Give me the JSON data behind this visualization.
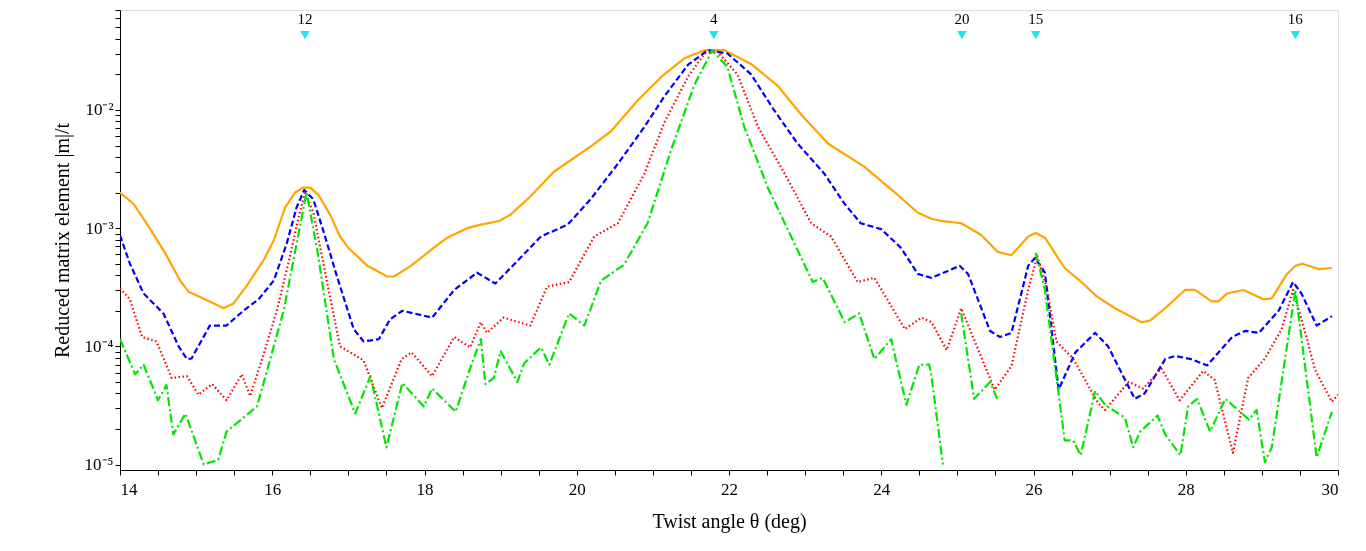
{
  "chart_data": {
    "type": "line",
    "xlabel": "Twist angle θ (deg)",
    "ylabel": "Reduced matrix element  |m|/t",
    "log": "y",
    "grid": false,
    "xlim": [
      14,
      30
    ],
    "ylim": [
      9e-06,
      0.07
    ],
    "xticks": [
      14,
      {
        "value": 14.5,
        "label": null
      },
      {
        "value": 15,
        "label": null
      },
      {
        "value": 15.5,
        "label": null
      },
      16,
      {
        "value": 16.5,
        "label": null
      },
      {
        "value": 17,
        "label": null
      },
      {
        "value": 17.5,
        "label": null
      },
      18,
      {
        "value": 18.5,
        "label": null
      },
      {
        "value": 19,
        "label": null
      },
      {
        "value": 19.5,
        "label": null
      },
      20,
      {
        "value": 20.5,
        "label": null
      },
      {
        "value": 21,
        "label": null
      },
      {
        "value": 21.5,
        "label": null
      },
      22,
      {
        "value": 22.5,
        "label": null
      },
      {
        "value": 23,
        "label": null
      },
      {
        "value": 23.5,
        "label": null
      },
      24,
      {
        "value": 24.5,
        "label": null
      },
      {
        "value": 25,
        "label": null
      },
      {
        "value": 25.5,
        "label": null
      },
      26,
      {
        "value": 26.5,
        "label": null
      },
      {
        "value": 27,
        "label": null
      },
      {
        "value": 27.5,
        "label": null
      },
      28,
      {
        "value": 28.5,
        "label": null
      },
      {
        "value": 29,
        "label": null
      },
      {
        "value": 29.5,
        "label": null
      },
      30
    ],
    "yticks": [
      {
        "value": 1e-05,
        "label": "10⁻⁵"
      },
      {
        "value": 2e-05,
        "label": null
      },
      {
        "value": 3e-05,
        "label": null
      },
      {
        "value": 4e-05,
        "label": null
      },
      {
        "value": 5e-05,
        "label": null
      },
      {
        "value": 6e-05,
        "label": null
      },
      {
        "value": 7e-05,
        "label": null
      },
      {
        "value": 8e-05,
        "label": null
      },
      {
        "value": 9e-05,
        "label": null
      },
      {
        "value": 0.0001,
        "label": "10⁻⁴"
      },
      {
        "value": 0.0002,
        "label": null
      },
      {
        "value": 0.0003,
        "label": null
      },
      {
        "value": 0.0004,
        "label": null
      },
      {
        "value": 0.0005,
        "label": null
      },
      {
        "value": 0.0006,
        "label": null
      },
      {
        "value": 0.0007,
        "label": null
      },
      {
        "value": 0.0008,
        "label": null
      },
      {
        "value": 0.0009,
        "label": null
      },
      {
        "value": 0.001,
        "label": "10⁻³"
      },
      {
        "value": 0.002,
        "label": null
      },
      {
        "value": 0.003,
        "label": null
      },
      {
        "value": 0.004,
        "label": null
      },
      {
        "value": 0.005,
        "label": null
      },
      {
        "value": 0.006,
        "label": null
      },
      {
        "value": 0.007,
        "label": null
      },
      {
        "value": 0.008,
        "label": null
      },
      {
        "value": 0.009,
        "label": null
      },
      {
        "value": 0.01,
        "label": "10⁻²"
      },
      {
        "value": 0.02,
        "label": null
      },
      {
        "value": 0.03,
        "label": null
      },
      {
        "value": 0.04,
        "label": null
      },
      {
        "value": 0.05,
        "label": null
      },
      {
        "value": 0.06,
        "label": null
      },
      {
        "value": 0.07,
        "label": null
      }
    ],
    "series": [
      {
        "color": "#ffa500",
        "line_style": "solid",
        "x": [
          14.0,
          14.18,
          14.39,
          14.59,
          14.79,
          14.9,
          15.18,
          15.36,
          15.49,
          15.67,
          15.89,
          16.02,
          16.17,
          16.3,
          16.4,
          16.5,
          16.61,
          16.76,
          16.89,
          17.0,
          17.25,
          17.51,
          17.6,
          17.82,
          18.12,
          18.3,
          18.56,
          18.74,
          18.98,
          19.13,
          19.39,
          19.7,
          20.18,
          20.45,
          20.8,
          21.11,
          21.42,
          21.68,
          21.94,
          22.29,
          22.64,
          22.95,
          23.3,
          23.78,
          24.18,
          24.48,
          24.66,
          24.79,
          25.05,
          25.31,
          25.53,
          25.71,
          25.93,
          26.03,
          26.15,
          26.41,
          26.63,
          26.83,
          27.07,
          27.42,
          27.53,
          27.73,
          27.99,
          28.12,
          28.34,
          28.43,
          28.54,
          28.76,
          29.02,
          29.13,
          29.33,
          29.44,
          29.53,
          29.75,
          29.92
        ],
        "values": [
          0.002,
          0.0016,
          0.001,
          0.00062,
          0.00036,
          0.00029,
          0.00024,
          0.00021,
          0.00023,
          0.00033,
          0.00054,
          0.00079,
          0.0015,
          0.002,
          0.0022,
          0.0022,
          0.0019,
          0.0013,
          0.00085,
          0.00068,
          0.00048,
          0.00039,
          0.00039,
          0.00048,
          0.00068,
          0.00083,
          0.001,
          0.00107,
          0.00115,
          0.0013,
          0.00185,
          0.003,
          0.0049,
          0.0066,
          0.012,
          0.019,
          0.0275,
          0.032,
          0.032,
          0.0245,
          0.016,
          0.0091,
          0.0052,
          0.0033,
          0.002,
          0.00135,
          0.0012,
          0.00115,
          0.0011,
          0.00088,
          0.00063,
          0.00059,
          0.00085,
          0.00091,
          0.00083,
          0.00046,
          0.00035,
          0.000265,
          0.00021,
          0.00016,
          0.000165,
          0.00021,
          0.0003,
          0.0003,
          0.00024,
          0.00024,
          0.00028,
          0.0003,
          0.00025,
          0.000255,
          0.00041,
          0.00048,
          0.0005,
          0.00045,
          0.00046
        ]
      },
      {
        "color": "#0000ff",
        "line_style": "dashed",
        "x": [
          14.0,
          14.13,
          14.31,
          14.57,
          14.77,
          14.88,
          14.94,
          15.18,
          15.4,
          15.62,
          15.82,
          16.02,
          16.19,
          16.32,
          16.42,
          16.54,
          16.68,
          16.85,
          17.07,
          17.2,
          17.4,
          17.55,
          17.71,
          18.1,
          18.39,
          18.69,
          18.93,
          19.13,
          19.53,
          19.88,
          20.18,
          20.54,
          20.89,
          21.15,
          21.46,
          21.72,
          21.98,
          22.29,
          22.59,
          22.9,
          23.25,
          23.52,
          23.73,
          24.0,
          24.26,
          24.48,
          24.66,
          25.03,
          25.14,
          25.43,
          25.56,
          25.71,
          25.93,
          26.02,
          26.15,
          26.33,
          26.55,
          26.81,
          26.98,
          27.33,
          27.46,
          27.73,
          27.86,
          28.07,
          28.28,
          28.61,
          28.78,
          28.96,
          29.22,
          29.41,
          29.52,
          29.72,
          29.92
        ],
        "values": [
          0.00087,
          0.0005,
          0.00028,
          0.00019,
          0.0001,
          7.8e-05,
          7.9e-05,
          0.00015,
          0.00015,
          0.0002,
          0.00025,
          0.00036,
          0.00074,
          0.0015,
          0.0021,
          0.00175,
          0.00091,
          0.00039,
          0.00014,
          0.00011,
          0.000115,
          0.00017,
          0.0002,
          0.000175,
          0.0003,
          0.00042,
          0.00034,
          0.00046,
          0.00085,
          0.00107,
          0.00175,
          0.0035,
          0.0072,
          0.013,
          0.024,
          0.032,
          0.03,
          0.02,
          0.01,
          0.0052,
          0.0029,
          0.0016,
          0.0011,
          0.00098,
          0.00068,
          0.00041,
          0.00038,
          0.00048,
          0.00041,
          0.000135,
          0.00012,
          0.00013,
          0.00048,
          0.00056,
          0.00042,
          4.3e-05,
          8.9e-05,
          0.00013,
          0.0001,
          3.6e-05,
          4e-05,
          7.8e-05,
          8.3e-05,
          7.8e-05,
          6.9e-05,
          0.00012,
          0.000135,
          0.00013,
          0.0002,
          0.00035,
          0.00028,
          0.00015,
          0.00018
        ]
      },
      {
        "color": "#ff0000",
        "line_style": "dotted",
        "x": [
          14.0,
          14.13,
          14.29,
          14.48,
          14.68,
          14.88,
          15.03,
          15.21,
          15.4,
          15.6,
          15.71,
          15.89,
          16.06,
          16.21,
          16.35,
          16.43,
          16.54,
          16.72,
          16.89,
          17.2,
          17.44,
          17.7,
          17.83,
          18.1,
          18.39,
          18.6,
          18.74,
          18.82,
          19.04,
          19.24,
          19.39,
          19.61,
          19.9,
          20.23,
          20.54,
          20.89,
          21.15,
          21.46,
          21.68,
          21.85,
          22.11,
          22.38,
          22.73,
          23.08,
          23.34,
          23.69,
          23.91,
          24.31,
          24.53,
          24.66,
          24.86,
          25.05,
          25.49,
          25.71,
          25.93,
          26.05,
          26.17,
          26.3,
          26.52,
          26.85,
          26.94,
          27.25,
          27.44,
          27.68,
          27.92,
          28.23,
          28.38,
          28.62,
          28.82,
          29.04,
          29.26,
          29.41,
          29.57,
          29.7,
          29.92,
          30.0
        ],
        "values": [
          0.00031,
          0.00025,
          0.00012,
          0.00011,
          5.4e-05,
          5.6e-05,
          3.9e-05,
          4.8e-05,
          3.5e-05,
          5.8e-05,
          3.8e-05,
          8.7e-05,
          0.0002,
          0.0005,
          0.00126,
          0.002,
          0.00135,
          0.00035,
          0.0001,
          7.6e-05,
          3e-05,
          7.8e-05,
          8.9e-05,
          5.6e-05,
          0.00012,
          9.8e-05,
          0.00016,
          0.00013,
          0.000175,
          0.00016,
          0.00015,
          0.00032,
          0.00035,
          0.00085,
          0.0011,
          0.0029,
          0.0078,
          0.019,
          0.03,
          0.031,
          0.02,
          0.0072,
          0.0029,
          0.0011,
          0.00085,
          0.00035,
          0.00038,
          0.00014,
          0.000175,
          0.00016,
          9.3e-05,
          0.00021,
          4.3e-05,
          6.8e-05,
          0.0003,
          0.00058,
          0.00032,
          0.00011,
          7.9e-05,
          3.3e-05,
          2.9e-05,
          5e-05,
          4.4e-05,
          6.5e-05,
          3.5e-05,
          6.2e-05,
          5.2e-05,
          1.26e-05,
          5.4e-05,
          7.9e-05,
          0.00014,
          0.0003,
          0.00013,
          6.3e-05,
          3.4e-05,
          3.9e-05
        ]
      },
      {
        "color": "#00e600",
        "line_style": "dashdot",
        "x": [
          14.0,
          14.2,
          14.31,
          14.5,
          14.61,
          14.7,
          14.86,
          15.1,
          15.29,
          15.4,
          15.8,
          16.15,
          16.45,
          16.59,
          16.81,
          17.09,
          17.29,
          17.5,
          17.71,
          17.99,
          18.1,
          18.41,
          18.61,
          18.74,
          18.8,
          18.91,
          19.0,
          19.22,
          19.31,
          19.53,
          19.64,
          19.9,
          20.1,
          20.32,
          20.62,
          20.93,
          21.24,
          21.54,
          21.78,
          21.98,
          22.2,
          22.51,
          22.77,
          23.1,
          23.23,
          23.52,
          23.71,
          23.91,
          24.13,
          24.33,
          24.5,
          24.63,
          24.66,
          24.81,
          24.84,
          25.05,
          25.22,
          25.43,
          25.53,
          25.6,
          25.78,
          26.03,
          26.15,
          26.41,
          26.52,
          26.62,
          26.81,
          26.94,
          27.2,
          27.31,
          27.4,
          27.63,
          27.73,
          27.93,
          28.03,
          28.15,
          28.32,
          28.52,
          28.83,
          28.93,
          29.04,
          29.13,
          29.44,
          29.72,
          29.92
        ],
        "values": [
          0.000115,
          5.8e-05,
          7e-05,
          3.5e-05,
          4.7e-05,
          1.8e-05,
          2.7e-05,
          1e-05,
          1.1e-05,
          1.9e-05,
          3.1e-05,
          0.0002,
          0.002,
          0.00066,
          7.8e-05,
          2.7e-05,
          5.6e-05,
          1.4e-05,
          4.9e-05,
          3.1e-05,
          4.4e-05,
          2.8e-05,
          6.8e-05,
          0.000115,
          4.8e-05,
          5.4e-05,
          9.1e-05,
          5e-05,
          7.2e-05,
          9.8e-05,
          7e-05,
          0.00019,
          0.00015,
          0.00036,
          0.00049,
          0.0011,
          0.0046,
          0.016,
          0.032,
          0.023,
          0.0072,
          0.0022,
          0.00098,
          0.00035,
          0.00038,
          0.00016,
          0.00019,
          7.8e-05,
          0.000115,
          3.2e-05,
          7e-05,
          7e-05,
          5.6e-05,
          1e-05,
          null,
          0.00019,
          3.6e-05,
          5e-05,
          3.5e-05,
          null,
          null,
          0.00062,
          0.0003,
          1.6e-05,
          1.6e-05,
          1.2e-05,
          4.2e-05,
          3.2e-05,
          2.5e-05,
          1.4e-05,
          1.9e-05,
          2.6e-05,
          1.8e-05,
          1.2e-05,
          3.1e-05,
          3.6e-05,
          1.9e-05,
          3.6e-05,
          2.4e-05,
          2.9e-05,
          1.05e-05,
          1.4e-05,
          0.0003,
          1.15e-05,
          2.8e-05
        ]
      },
      {
        "type": "scatter",
        "marker": "triangle",
        "color": "#1ee3f0",
        "x": [
          16.43,
          21.8,
          25.06,
          26.03,
          29.44
        ],
        "values": [
          0.043,
          0.043,
          0.043,
          0.043,
          0.043
        ]
      }
    ],
    "annotations": [
      "12",
      "4",
      "20",
      "15",
      "16"
    ]
  }
}
